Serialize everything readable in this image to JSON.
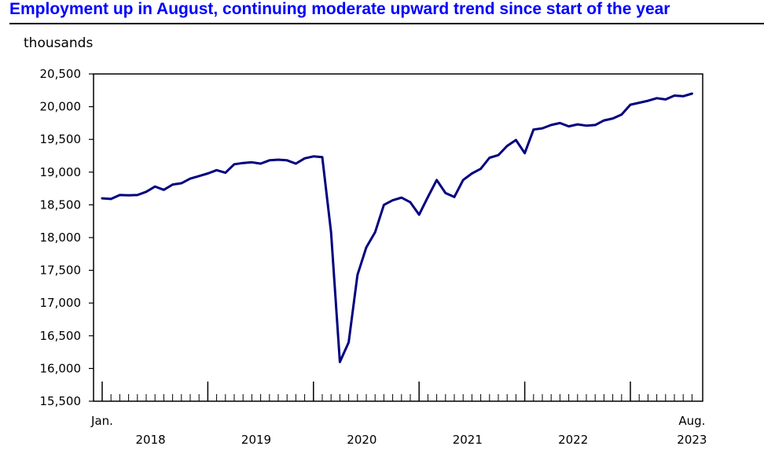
{
  "chart_data": {
    "type": "line",
    "title": "Employment up in August, continuing moderate upward trend since start of the year",
    "ylabel": "thousands",
    "ylim": [
      15500,
      20500
    ],
    "yticks": [
      "20,500",
      "20,000",
      "19,500",
      "19,000",
      "18,500",
      "18,000",
      "17,500",
      "17,000",
      "16,500",
      "16,000",
      "15,500"
    ],
    "x_start_label": "Jan.",
    "x_end_label": "Aug.",
    "year_labels": [
      "2018",
      "2019",
      "2020",
      "2021",
      "2022",
      "2023"
    ],
    "grid": false,
    "line_color": "#00007f",
    "x": [
      "2018-01",
      "2018-02",
      "2018-03",
      "2018-04",
      "2018-05",
      "2018-06",
      "2018-07",
      "2018-08",
      "2018-09",
      "2018-10",
      "2018-11",
      "2018-12",
      "2019-01",
      "2019-02",
      "2019-03",
      "2019-04",
      "2019-05",
      "2019-06",
      "2019-07",
      "2019-08",
      "2019-09",
      "2019-10",
      "2019-11",
      "2019-12",
      "2020-01",
      "2020-02",
      "2020-03",
      "2020-04",
      "2020-05",
      "2020-06",
      "2020-07",
      "2020-08",
      "2020-09",
      "2020-10",
      "2020-11",
      "2020-12",
      "2021-01",
      "2021-02",
      "2021-03",
      "2021-04",
      "2021-05",
      "2021-06",
      "2021-07",
      "2021-08",
      "2021-09",
      "2021-10",
      "2021-11",
      "2021-12",
      "2022-01",
      "2022-02",
      "2022-03",
      "2022-04",
      "2022-05",
      "2022-06",
      "2022-07",
      "2022-08",
      "2022-09",
      "2022-10",
      "2022-11",
      "2022-12",
      "2023-01",
      "2023-02",
      "2023-03",
      "2023-04",
      "2023-05",
      "2023-06",
      "2023-07",
      "2023-08"
    ],
    "series": [
      {
        "values": [
          18600,
          18590,
          18650,
          18645,
          18650,
          18700,
          18780,
          18730,
          18810,
          18830,
          18900,
          18940,
          18980,
          19030,
          18990,
          19120,
          19140,
          19150,
          19130,
          19180,
          19190,
          19180,
          19130,
          19210,
          19240,
          19230,
          18080,
          16100,
          16400,
          17430,
          17850,
          18080,
          18500,
          18570,
          18610,
          18540,
          18350,
          18620,
          18880,
          18680,
          18620,
          18880,
          18980,
          19050,
          19220,
          19260,
          19400,
          19490,
          19290,
          19650,
          19670,
          19720,
          19750,
          19700,
          19730,
          19710,
          19720,
          19790,
          19820,
          19880,
          20030,
          20060,
          20090,
          20130,
          20110,
          20170,
          20160,
          20200
        ]
      }
    ]
  }
}
